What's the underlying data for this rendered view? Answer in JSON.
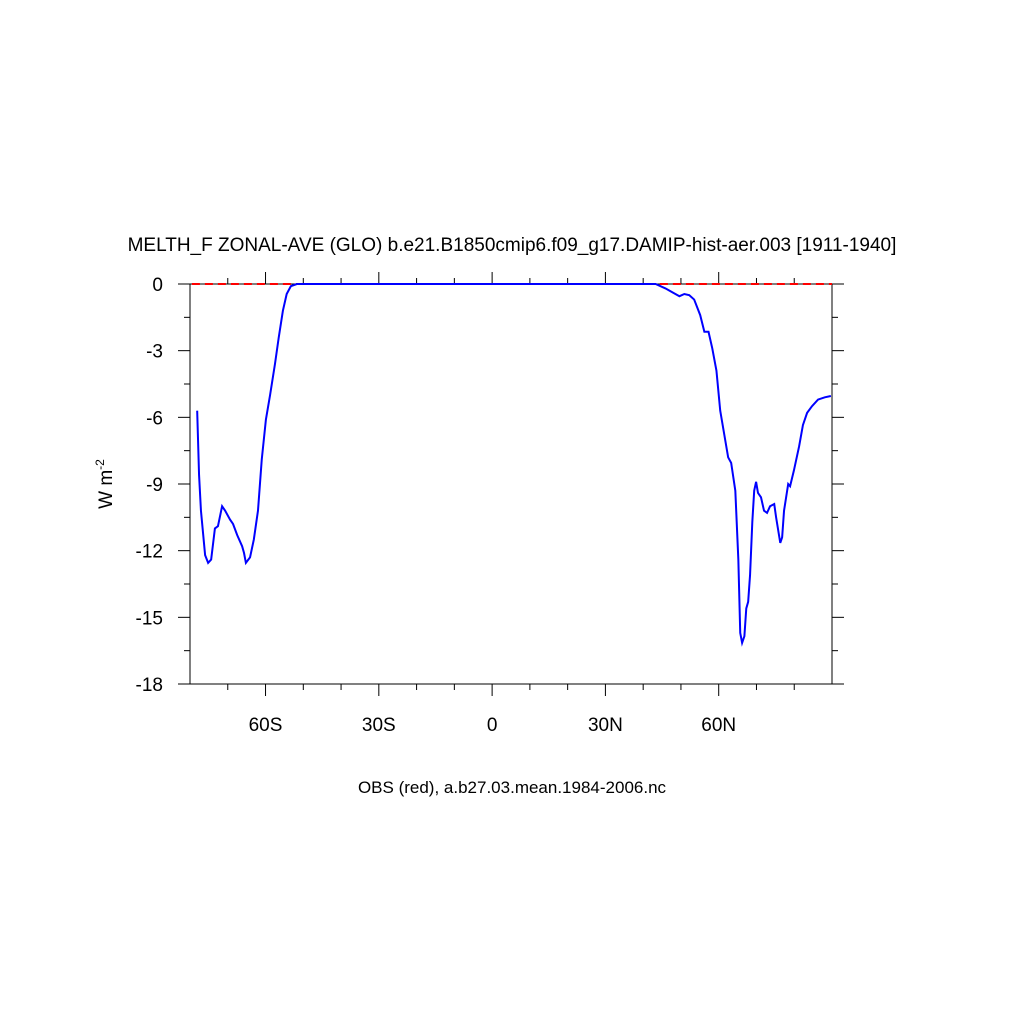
{
  "chart_data": {
    "type": "line",
    "title": "MELTH_F ZONAL-AVE (GLO) b.e21.B1850cmip6.f09_g17.DAMIP-hist-aer.003 [1911-1940]",
    "xlabel": "OBS (red), a.b27.03.mean.1984-2006.nc",
    "ylabel": "W m",
    "ylabel_sup": "-2",
    "xlim": [
      -80,
      90
    ],
    "xticks": [
      {
        "value": -60,
        "label": "60S"
      },
      {
        "value": -30,
        "label": "30S"
      },
      0,
      {
        "value": 30,
        "label": "30N"
      },
      {
        "value": 60,
        "label": "60N"
      }
    ],
    "xminorticks": [
      -70,
      -50,
      -40,
      -20,
      -10,
      10,
      20,
      40,
      50,
      70,
      80
    ],
    "ylim": [
      -18,
      0
    ],
    "yticks": [
      0,
      -3,
      -6,
      -9,
      -12,
      -15,
      -18
    ],
    "yminorticks": [
      -1.5,
      -4.5,
      -7.5,
      -10.5,
      -13.5,
      -16.5
    ],
    "series": [
      {
        "color": "#0000ff",
        "x": [
          -78.1,
          -77.6,
          -77.1,
          -76,
          -75.2,
          -74.4,
          -73.4,
          -72.6,
          -71.5,
          -70.7,
          -69.4,
          -68.6,
          -67.5,
          -66.2,
          -65.7,
          -65.2,
          -64.1,
          -63.1,
          -62,
          -61,
          -59.9,
          -58.8,
          -57.5,
          -56.5,
          -55.4,
          -54.4,
          -53.3,
          -51.7,
          43.3,
          45.9,
          48,
          49.6,
          50.9,
          52.2,
          53.5,
          55.1,
          56.2,
          57.3,
          58.3,
          59.4,
          60.4,
          61.5,
          62.5,
          63.3,
          64.4,
          65.2,
          65.7,
          66.2,
          66.8,
          67.3,
          67.8,
          68.3,
          68.9,
          69.4,
          69.9,
          70.4,
          71.2,
          72,
          72.8,
          73.6,
          74.7,
          75.2,
          76.3,
          76.8,
          77.3,
          78.4,
          78.9,
          79.9,
          81.3,
          82.3,
          83.4,
          84.7,
          86.3,
          88.1,
          89.7
        ],
        "values": [
          -5.7,
          -8.6,
          -10.2,
          -12.2,
          -12.55,
          -12.4,
          -11,
          -10.9,
          -10,
          -10.2,
          -10.6,
          -10.8,
          -11.3,
          -11.8,
          -12.1,
          -12.55,
          -12.3,
          -11.5,
          -10.2,
          -7.9,
          -6.1,
          -5,
          -3.6,
          -2.4,
          -1.2,
          -0.45,
          -0.1,
          0,
          0,
          -0.2,
          -0.4,
          -0.55,
          -0.45,
          -0.5,
          -0.7,
          -1.4,
          -2.15,
          -2.15,
          -2.9,
          -3.9,
          -5.7,
          -6.8,
          -7.8,
          -8.05,
          -9.3,
          -12.4,
          -15.7,
          -16.15,
          -15.85,
          -14.6,
          -14.3,
          -13.1,
          -10.7,
          -9.3,
          -8.9,
          -9.4,
          -9.6,
          -10.2,
          -10.3,
          -10,
          -9.9,
          -10.5,
          -11.65,
          -11.4,
          -10.2,
          -9,
          -9.1,
          -8.4,
          -7.3,
          -6.35,
          -5.8,
          -5.5,
          -5.2,
          -5.1,
          -5.04
        ]
      },
      {
        "color": "#ff0000",
        "dashed": true,
        "x": [
          -79.5,
          90
        ],
        "values": [
          0,
          0
        ]
      }
    ]
  }
}
